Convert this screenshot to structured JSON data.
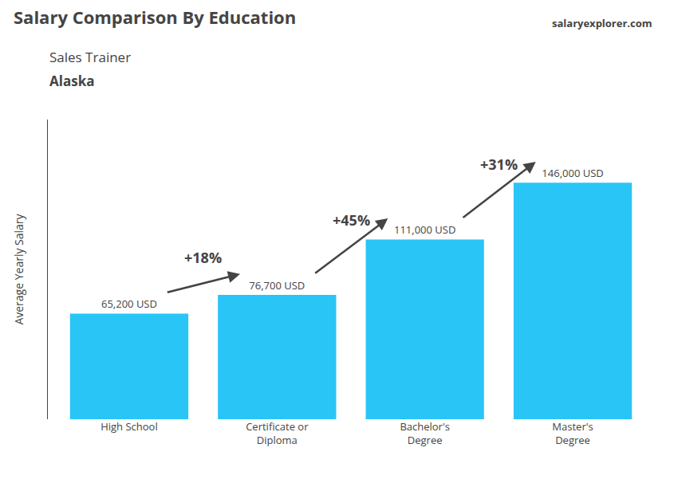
{
  "chart_data": {
    "type": "bar",
    "title": "Salary Comparison By Education",
    "subtitle": "Sales Trainer",
    "location": "Alaska",
    "watermark": "salaryexplorer.com",
    "y_label": "Average Yearly Salary",
    "categories": [
      "High School",
      "Certificate or\nDiploma",
      "Bachelor's\nDegree",
      "Master's\nDegree"
    ],
    "values": [
      65200,
      76700,
      111000,
      146000
    ],
    "value_labels": [
      "65,200 USD",
      "76,700 USD",
      "111,000 USD",
      "146,000 USD"
    ],
    "data_labels": true,
    "annotations": [
      "+18%",
      "+45%",
      "+31%"
    ],
    "color": "#29c5f6",
    "ylim": [
      0,
      185000
    ],
    "yticks": [],
    "tick_labels": "x",
    "grid": false
  }
}
